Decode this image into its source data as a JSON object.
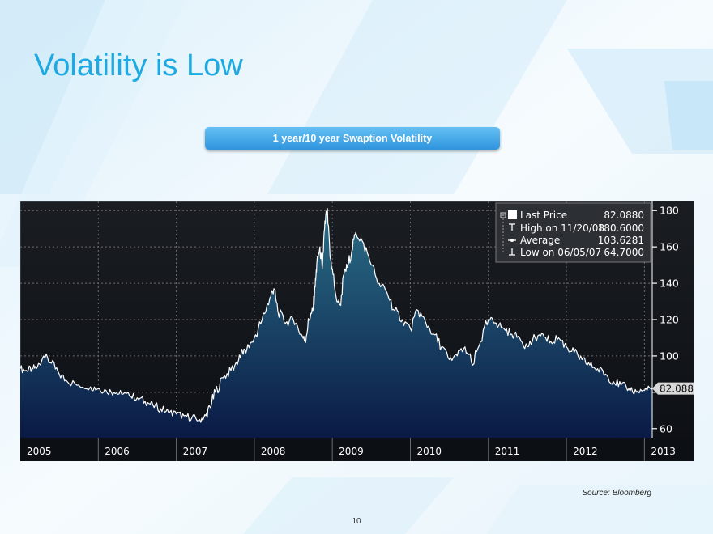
{
  "slide": {
    "title": "Volatility is Low",
    "source": "Source: Bloomberg",
    "page_number": "10"
  },
  "colors": {
    "title": "#1da9e2",
    "banner": "#3aa0e6",
    "chart_background": "#101318",
    "series_line": "#ffffff",
    "area_top": "#2a6f87",
    "area_bottom": "#0a1a45"
  },
  "chart_data": {
    "type": "area",
    "title": "1 year/10 year Swaption Volatility",
    "xlabel": "",
    "ylabel": "",
    "x_tick_labels": [
      "2005",
      "2006",
      "2007",
      "2008",
      "2009",
      "2010",
      "2011",
      "2012",
      "2013"
    ],
    "y_ticks": [
      60,
      80,
      100,
      120,
      140,
      160,
      180
    ],
    "y_tick_labels": [
      "60",
      "100",
      "120",
      "140",
      "160",
      "180"
    ],
    "ylim": [
      55,
      185
    ],
    "xlim": [
      2005.0,
      2013.1
    ],
    "grid": true,
    "y_axis_side": "right",
    "legend_position": "top-right",
    "legend": [
      {
        "marker": "square",
        "label": "Last Price",
        "value": "82.0880"
      },
      {
        "marker": "high",
        "label": "High on 11/20/08",
        "value": "180.6000"
      },
      {
        "marker": "average",
        "label": "Average",
        "value": "103.6281"
      },
      {
        "marker": "low",
        "label": "Low on 06/05/07",
        "value": "64.7000"
      }
    ],
    "last_value_label": "82.0880",
    "series": [
      {
        "name": "Last Price",
        "x": [
          2005.0,
          2005.08,
          2005.15,
          2005.22,
          2005.3,
          2005.4,
          2005.5,
          2005.6,
          2005.75,
          2005.9,
          2006.0,
          2006.1,
          2006.2,
          2006.3,
          2006.4,
          2006.5,
          2006.6,
          2006.7,
          2006.8,
          2006.9,
          2007.0,
          2007.1,
          2007.2,
          2007.3,
          2007.38,
          2007.43,
          2007.5,
          2007.6,
          2007.7,
          2007.8,
          2007.85,
          2007.9,
          2008.0,
          2008.1,
          2008.2,
          2008.25,
          2008.3,
          2008.4,
          2008.5,
          2008.6,
          2008.65,
          2008.7,
          2008.75,
          2008.78,
          2008.8,
          2008.84,
          2008.87,
          2008.9,
          2008.93,
          2008.97,
          2009.0,
          2009.05,
          2009.1,
          2009.15,
          2009.2,
          2009.25,
          2009.3,
          2009.4,
          2009.5,
          2009.6,
          2009.7,
          2009.8,
          2009.9,
          2010.0,
          2010.1,
          2010.2,
          2010.3,
          2010.4,
          2010.5,
          2010.6,
          2010.7,
          2010.8,
          2010.9,
          2011.0,
          2011.1,
          2011.2,
          2011.3,
          2011.4,
          2011.5,
          2011.6,
          2011.7,
          2011.8,
          2011.9,
          2012.0,
          2012.1,
          2012.2,
          2012.3,
          2012.4,
          2012.5,
          2012.6,
          2012.7,
          2012.8,
          2012.9,
          2013.0,
          2013.1
        ],
        "values": [
          93,
          92,
          93,
          94,
          100,
          96,
          90,
          86,
          84,
          83,
          82,
          81,
          80,
          79,
          78,
          77,
          75,
          73,
          71,
          69,
          68,
          67,
          66,
          65,
          67,
          72,
          80,
          88,
          92,
          98,
          102,
          103,
          110,
          120,
          132,
          137,
          125,
          118,
          120,
          112,
          108,
          120,
          125,
          138,
          150,
          160,
          148,
          170,
          180.6,
          155,
          148,
          132,
          128,
          145,
          150,
          158,
          168,
          162,
          150,
          140,
          135,
          125,
          120,
          115,
          125,
          118,
          112,
          105,
          98,
          100,
          105,
          95,
          108,
          120,
          118,
          115,
          112,
          110,
          105,
          110,
          112,
          108,
          110,
          105,
          102,
          98,
          95,
          93,
          90,
          86,
          84,
          82,
          80,
          81,
          82.088
        ]
      }
    ]
  }
}
